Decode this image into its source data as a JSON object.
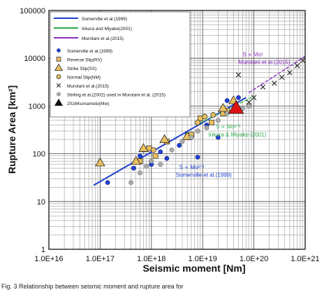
{
  "chart_data": {
    "type": "scatter",
    "xscale": "log",
    "yscale": "log",
    "xlim": [
      1e+16,
      1e+21
    ],
    "ylim": [
      1,
      100000
    ],
    "xlabel": "Seismic moment [Nm]",
    "ylabel": "Rupture Area [km²]",
    "grid": true,
    "legend_position": "top-left",
    "x_ticks": [
      "1.0E+16",
      "1.0E+17",
      "1.0E+18",
      "1.0E+19",
      "1.0E+20",
      "1.0E+21"
    ],
    "y_ticks": [
      "1",
      "10",
      "100",
      "1000",
      "10000",
      "100000"
    ],
    "legend": {
      "lines": [
        {
          "label": "Somerville et al.(1999)",
          "color": "#1f3fd0"
        },
        {
          "label": "Irikura and Miyake(2001)",
          "color": "#2faa4a"
        },
        {
          "label": "Murotani et al.(2015)",
          "color": "#8a2fc0"
        }
      ],
      "markers": [
        {
          "label": "Somerville et al.(1999)",
          "marker": "circle",
          "color": "#1f3fd0"
        },
        {
          "label": "Reverse Slip(RV)",
          "marker": "square",
          "color": "#e8c060"
        },
        {
          "label": "Strike Slip(SS)",
          "marker": "triangle",
          "color": "#e8c060"
        },
        {
          "label": "Normal Slip(NM)",
          "marker": "circle-open",
          "color": "#e8c060"
        },
        {
          "label": "Murotani et al.(2015)",
          "marker": "x",
          "color": "#333333"
        },
        {
          "label": "Stirling et al.(2002) used in Murotani et al. (2015)",
          "marker": "circle",
          "color": "#aaaaaa"
        },
        {
          "label": "2016Kumamoto(Mw)",
          "marker": "triangle",
          "color": "#111111"
        }
      ]
    },
    "lines": [
      {
        "name": "Somerville et al.(1999)",
        "color": "#1f3fd0",
        "x": [
          7.5e+16,
          7e+19
        ],
        "y": [
          22,
          1500
        ]
      },
      {
        "name": "Irikura and Miyake(2001)",
        "color": "#2faa4a",
        "x": [
          7.5e+18,
          1e+20
        ],
        "y": [
          400,
          1600
        ],
        "dashed": true
      },
      {
        "name": "Murotani et al.(2015)",
        "color": "#8a2fc0",
        "x": [
          8e+19,
          1e+21
        ],
        "y": [
          1900,
          11000
        ],
        "dashed": true
      }
    ],
    "series": [
      {
        "name": "Somerville et al.(1999)",
        "marker": "circle",
        "color": "#1f3fd0",
        "x": [
          1.4e+17,
          4.5e+17,
          6e+17,
          7e+17,
          1e+18,
          1.5e+18,
          2e+18,
          3.5e+18,
          5e+18,
          8e+18,
          1.2e+19,
          2e+19,
          3e+19,
          5e+19
        ],
        "y": [
          25,
          50,
          90,
          120,
          60,
          110,
          80,
          150,
          250,
          85,
          400,
          220,
          1300,
          1500
        ]
      },
      {
        "name": "Reverse Slip(RV)",
        "marker": "square",
        "color": "#e8c060",
        "x": [
          6e+17,
          9e+17,
          1.2e+18,
          2e+18,
          6e+18,
          9e+18,
          1.5e+19,
          2.5e+19,
          3e+19
        ],
        "y": [
          70,
          130,
          90,
          180,
          250,
          550,
          450,
          700,
          800
        ]
      },
      {
        "name": "Strike Slip(SS)",
        "marker": "triangle",
        "color": "#e8c060",
        "x": [
          1e+17,
          5e+17,
          7e+17,
          1.8e+18,
          5e+18,
          2.5e+19,
          4e+19
        ],
        "y": [
          65,
          70,
          130,
          200,
          230,
          900,
          1300
        ]
      },
      {
        "name": "Normal Slip(NM)",
        "marker": "circle-open",
        "color": "#e8c060",
        "x": [
          1.1e+18,
          8e+18,
          1.1e+19,
          1.6e+19
        ],
        "y": [
          120,
          450,
          600,
          650
        ]
      },
      {
        "name": "Murotani et al.(2015)",
        "marker": "x",
        "color": "#333333",
        "x": [
          5e+19,
          8e+19,
          1e+20,
          1.5e+20,
          2.5e+20,
          3.5e+20,
          5e+20,
          7e+20,
          9e+20
        ],
        "y": [
          4500,
          1200,
          1500,
          2500,
          3000,
          4000,
          5000,
          7000,
          9000
        ]
      },
      {
        "name": "Stirling et al.(2002) used in Murotani et al. (2015)",
        "marker": "circle",
        "color": "#aaaaaa",
        "x": [
          4e+17,
          6e+17,
          8e+17,
          1e+18,
          1.5e+18,
          2.5e+18,
          4e+18,
          6e+18,
          8e+18,
          1.2e+19,
          2e+19,
          3e+19,
          6e+19,
          8e+19
        ],
        "y": [
          25,
          40,
          55,
          70,
          60,
          120,
          180,
          220,
          300,
          350,
          500,
          700,
          900,
          1000
        ]
      },
      {
        "name": "2016Kumamoto(Mw)",
        "marker": "triangle",
        "color": "#dd1111",
        "x": [
          4.5e+19
        ],
        "y": [
          900
        ]
      }
    ],
    "annotations": [
      {
        "text": "S ∝ Mo¹",
        "color": "#8a2fc0",
        "x": 6e+19,
        "y": 11000
      },
      {
        "text": "Murotani et al.(2015)",
        "color": "#8a2fc0",
        "x": 5e+19,
        "y": 7500
      },
      {
        "text": "S ∝ Mo²ᐟ³",
        "color": "#2faa4a",
        "x": 1.8e+19,
        "y": 340
      },
      {
        "text": "Irikura & Miyake (2001)",
        "color": "#2faa4a",
        "x": 1.3e+19,
        "y": 230
      },
      {
        "text": "S ∝ Mo²ᐟ³",
        "color": "#1f3fd0",
        "x": 3.5e+18,
        "y": 48
      },
      {
        "text": "Somerville et al.(1999)",
        "color": "#1f3fd0",
        "x": 3e+18,
        "y": 33
      }
    ]
  },
  "caption": "Fig. 3  Relationship between seismic moment and rupture area for"
}
